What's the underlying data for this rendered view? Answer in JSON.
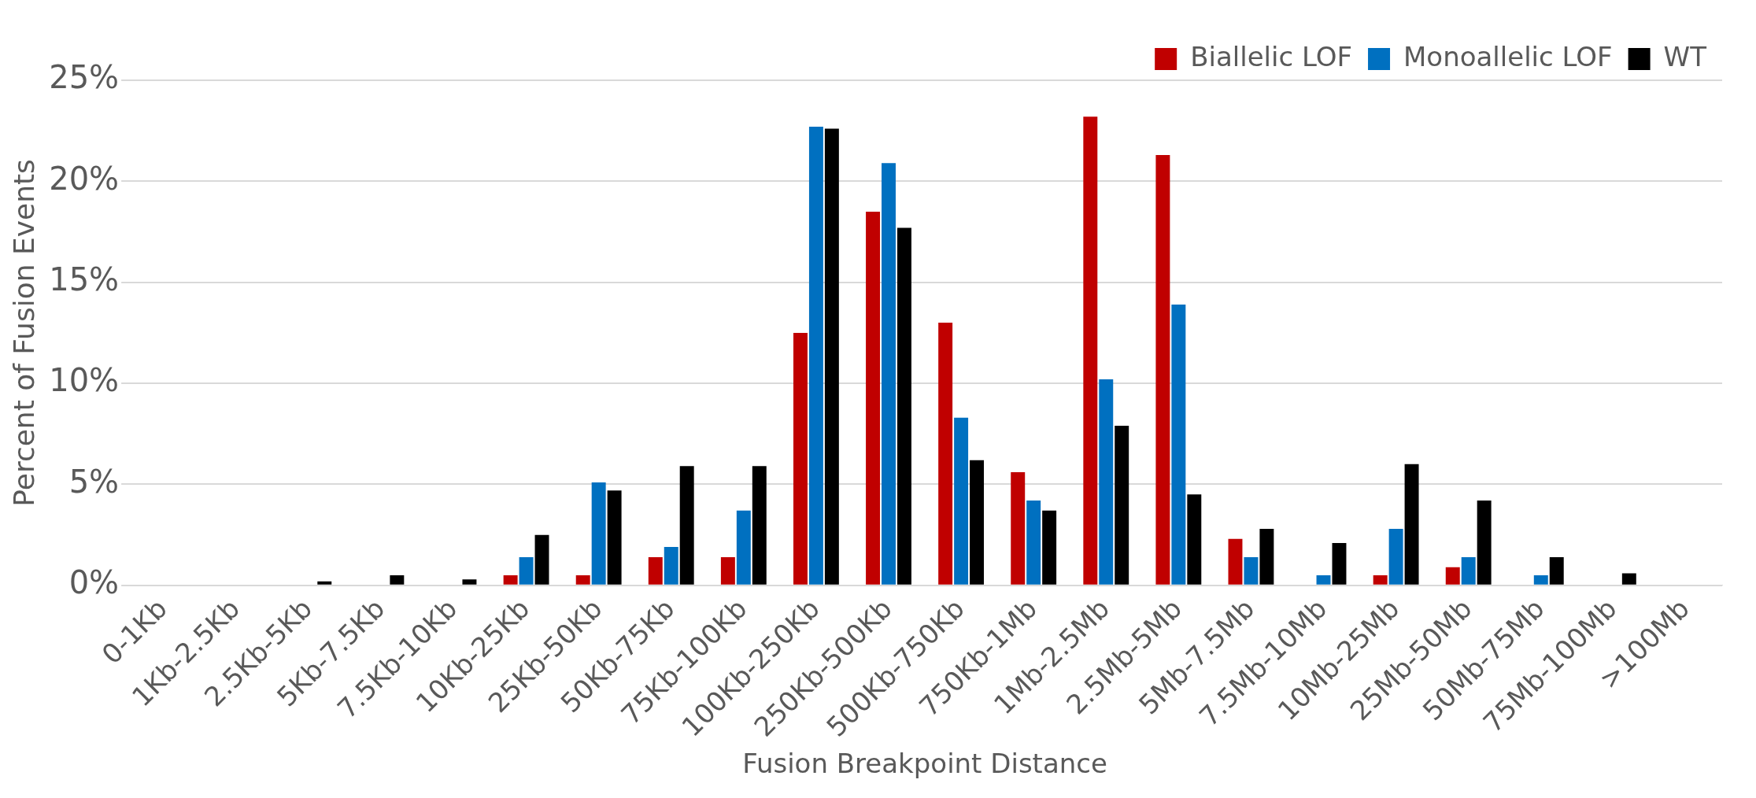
{
  "chart_data": {
    "type": "bar",
    "xlabel": "Fusion Breakpoint Distance",
    "ylabel": "Percent of Fusion Events",
    "categories": [
      "0-1Kb",
      "1Kb-2.5Kb",
      "2.5Kb-5Kb",
      "5Kb-7.5Kb",
      "7.5Kb-10Kb",
      "10Kb-25Kb",
      "25Kb-50Kb",
      "50Kb-75Kb",
      "75Kb-100Kb",
      "100Kb-250Kb",
      "250Kb-500Kb",
      "500Kb-750Kb",
      "750Kb-1Mb",
      "1Mb-2.5Mb",
      "2.5Mb-5Mb",
      "5Mb-7.5Mb",
      "7.5Mb-10Mb",
      "10Mb-25Mb",
      "25Mb-50Mb",
      "50Mb-75Mb",
      "75Mb-100Mb",
      ">100Mb"
    ],
    "series": [
      {
        "name": "Biallelic LOF",
        "color": "#c00000",
        "values": [
          0,
          0,
          0,
          0,
          0,
          0.5,
          0.5,
          1.4,
          1.4,
          12.5,
          18.5,
          13.0,
          5.6,
          23.2,
          21.3,
          2.3,
          0,
          0.5,
          0.9,
          0,
          0,
          0
        ]
      },
      {
        "name": "Monoallelic LOF",
        "color": "#0070c0",
        "values": [
          0,
          0,
          0,
          0,
          0,
          1.4,
          5.1,
          1.9,
          3.7,
          22.7,
          20.9,
          8.3,
          4.2,
          10.2,
          13.9,
          1.4,
          0.5,
          2.8,
          1.4,
          0.5,
          0,
          0
        ]
      },
      {
        "name": "WT",
        "color": "#000000",
        "values": [
          0,
          0,
          0.2,
          0.5,
          0.3,
          2.5,
          4.7,
          5.9,
          5.9,
          22.6,
          17.7,
          6.2,
          3.7,
          7.9,
          4.5,
          2.8,
          2.1,
          6.0,
          4.2,
          1.4,
          0.6,
          0
        ]
      }
    ],
    "ylim": [
      0,
      25
    ],
    "yticks": [
      {
        "value": 0,
        "label": "0%"
      },
      {
        "value": 5,
        "label": "5%"
      },
      {
        "value": 10,
        "label": "10%"
      },
      {
        "value": 15,
        "label": "15%"
      },
      {
        "value": 20,
        "label": "20%"
      },
      {
        "value": 25,
        "label": "25%"
      }
    ],
    "grid": "y",
    "legend": "top right"
  }
}
